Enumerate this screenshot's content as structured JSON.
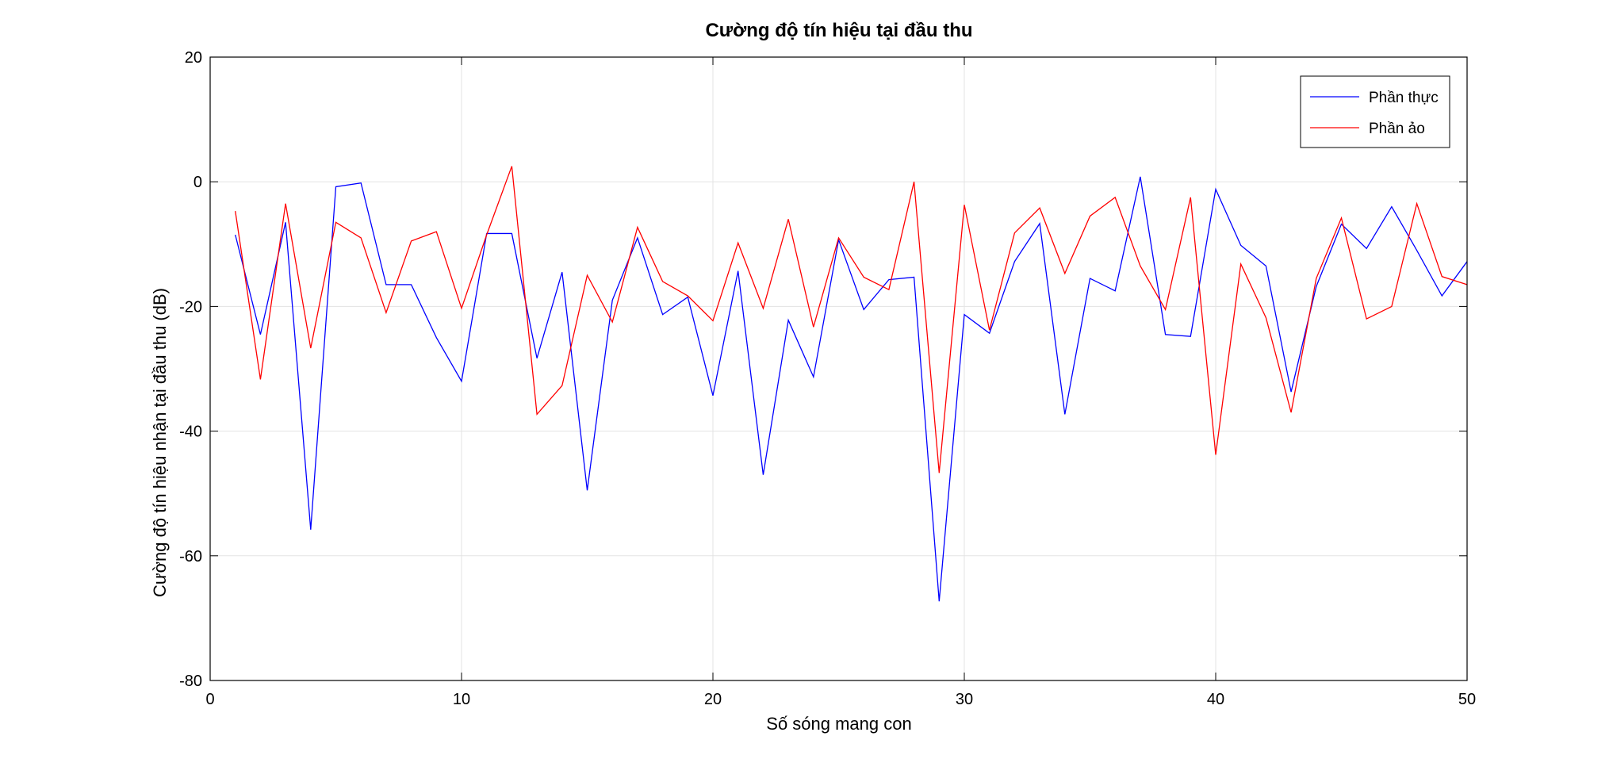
{
  "chart_data": {
    "type": "line",
    "title": "Cường độ tín hiệu tại đầu thu",
    "xlabel": "Số sóng mang con",
    "ylabel": "Cường độ tín hiệu nhận tại đầu thu (dB)",
    "xlim": [
      0,
      50
    ],
    "ylim": [
      -80,
      20
    ],
    "xticks": [
      0,
      10,
      20,
      30,
      40,
      50
    ],
    "yticks": [
      -80,
      -60,
      -40,
      -20,
      0,
      20
    ],
    "grid": true,
    "legend_position": "top-right",
    "x": [
      1,
      2,
      3,
      4,
      5,
      6,
      7,
      8,
      9,
      10,
      11,
      12,
      13,
      14,
      15,
      16,
      17,
      18,
      19,
      20,
      21,
      22,
      23,
      24,
      25,
      26,
      27,
      28,
      29,
      30,
      31,
      32,
      33,
      34,
      35,
      36,
      37,
      38,
      39,
      40,
      41,
      42,
      43,
      44,
      45,
      46,
      47,
      48,
      49,
      50
    ],
    "series": [
      {
        "name": "Phần thực",
        "color": "#0000ff",
        "values": [
          -8.5,
          -24.5,
          -6.5,
          -55.8,
          -0.8,
          -0.2,
          -16.5,
          -16.5,
          -25,
          -32,
          -8.3,
          -8.3,
          -28.3,
          -14.5,
          -49.5,
          -19,
          -9,
          -21.3,
          -18.5,
          -34.3,
          -14.3,
          -47,
          -22.2,
          -31.3,
          -9.3,
          -20.5,
          -15.7,
          -15.3,
          -67.3,
          -21.3,
          -24.3,
          -12.8,
          -6.7,
          -37.3,
          -15.5,
          -17.5,
          0.8,
          -24.5,
          -24.8,
          -1.2,
          -10.2,
          -13.5,
          -33.7,
          -16.8,
          -6.8,
          -10.7,
          -4,
          -11,
          -18.3,
          -12.8
        ]
      },
      {
        "name": "Phần ảo",
        "color": "#ff0000",
        "values": [
          -4.7,
          -31.7,
          -3.5,
          -26.7,
          -6.5,
          -9,
          -21,
          -9.5,
          -8,
          -20.3,
          -8.5,
          2.5,
          -37.3,
          -32.7,
          -15,
          -22.5,
          -7.3,
          -16,
          -18.3,
          -22.3,
          -9.8,
          -20.3,
          -6,
          -23.3,
          -9,
          -15.3,
          -17.3,
          0,
          -46.7,
          -3.7,
          -23.8,
          -8.2,
          -4.2,
          -14.7,
          -5.5,
          -2.5,
          -13.5,
          -20.5,
          -2.5,
          -43.8,
          -13.2,
          -21.8,
          -37,
          -15.5,
          -5.8,
          -22,
          -20,
          -3.5,
          -15.2,
          -16.5
        ]
      }
    ]
  }
}
